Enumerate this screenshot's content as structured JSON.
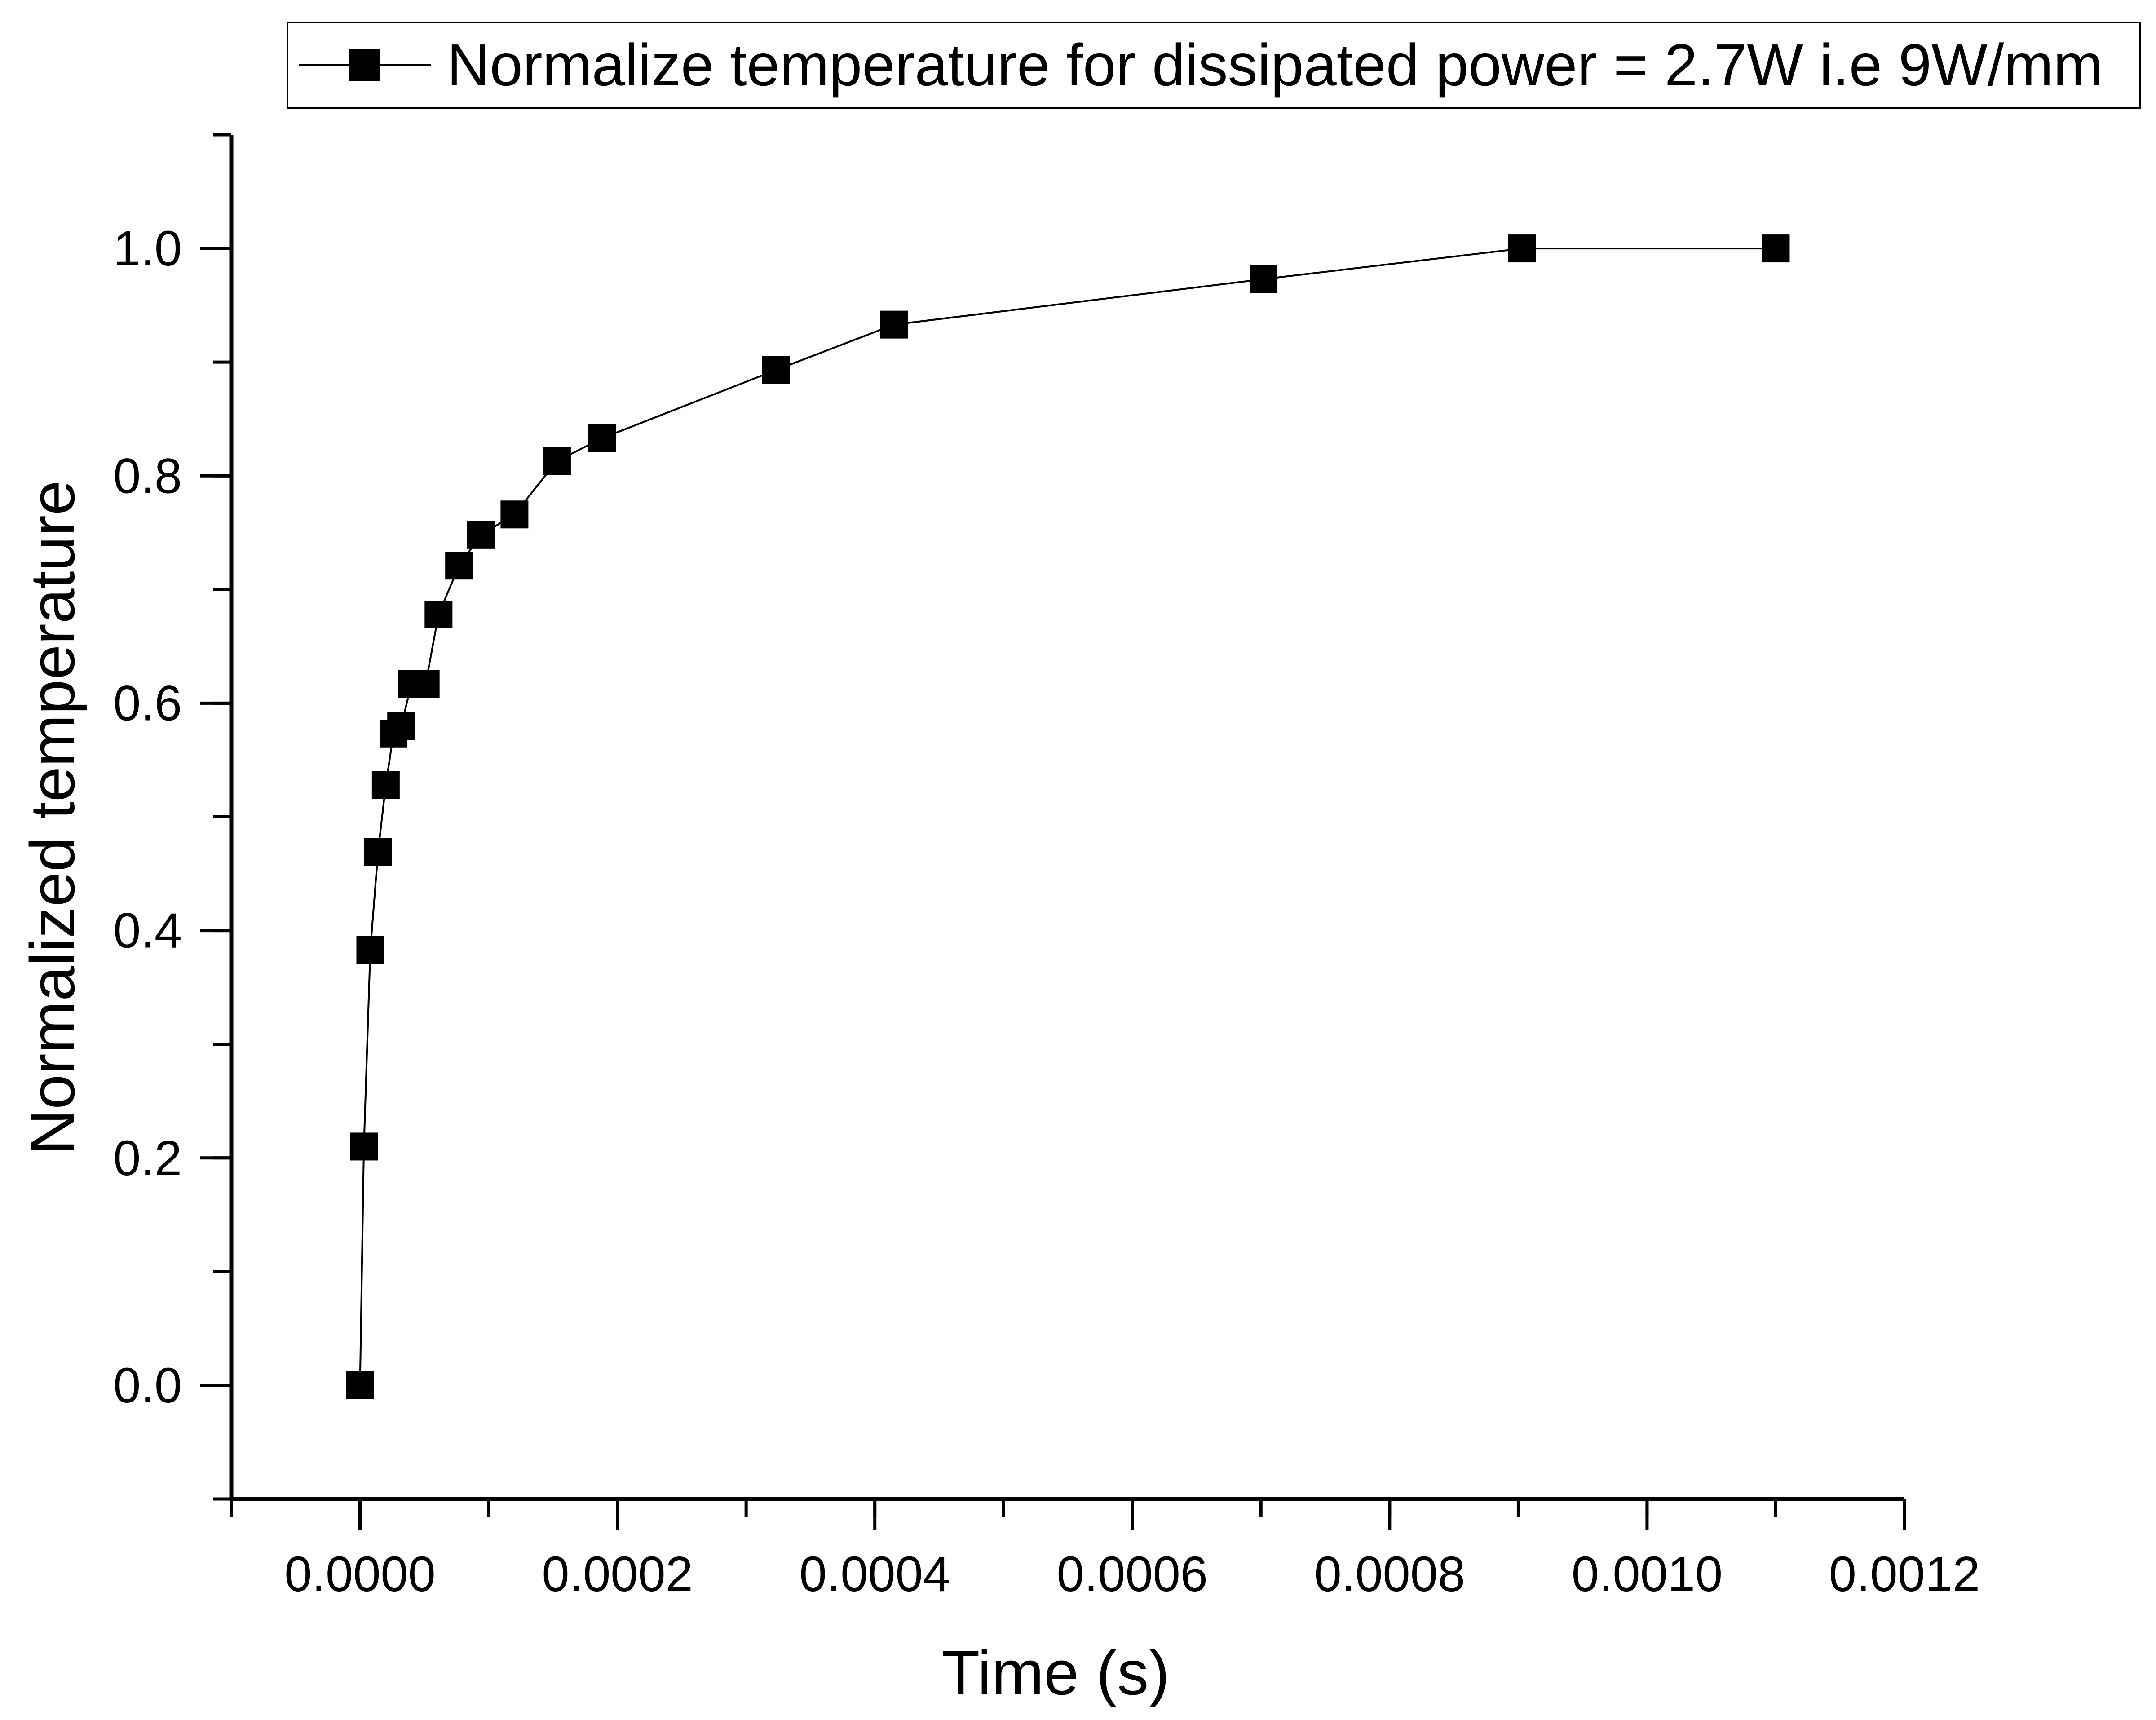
{
  "chart_data": {
    "type": "line",
    "title": "",
    "xlabel": "Time (s)",
    "ylabel": "Normalized temperature",
    "xlim": [
      -0.0001,
      0.0012
    ],
    "ylim": [
      -0.1,
      1.1
    ],
    "x_ticks": [
      0.0,
      0.0002,
      0.0004,
      0.0006,
      0.0008,
      0.001,
      0.0012
    ],
    "x_tick_labels": [
      "0.0000",
      "0.0002",
      "0.0004",
      "0.0006",
      "0.0008",
      "0.0010",
      "0.0012"
    ],
    "y_ticks": [
      0.0,
      0.2,
      0.4,
      0.6,
      0.8,
      1.0
    ],
    "y_tick_labels": [
      "0.0",
      "0.2",
      "0.4",
      "0.6",
      "0.8",
      "1.0"
    ],
    "grid": false,
    "legend_position": "top-right",
    "series": [
      {
        "name": "Normalize temperature for dissipated power = 2.7W i.e 9W/mm",
        "marker": "square",
        "color": "#000000",
        "x": [
          0.0,
          3e-06,
          8e-06,
          1.4e-05,
          2e-05,
          2.6e-05,
          3.2e-05,
          4e-05,
          5.1e-05,
          6.1e-05,
          7.7e-05,
          9.4e-05,
          0.00012,
          0.000153,
          0.000188,
          0.000323,
          0.000415,
          0.000702,
          0.000903,
          0.0011
        ],
        "values": [
          0.0,
          0.21,
          0.383,
          0.469,
          0.528,
          0.573,
          0.58,
          0.617,
          0.617,
          0.678,
          0.721,
          0.748,
          0.766,
          0.813,
          0.833,
          0.893,
          0.933,
          0.973,
          1.0,
          1.0
        ]
      }
    ]
  }
}
